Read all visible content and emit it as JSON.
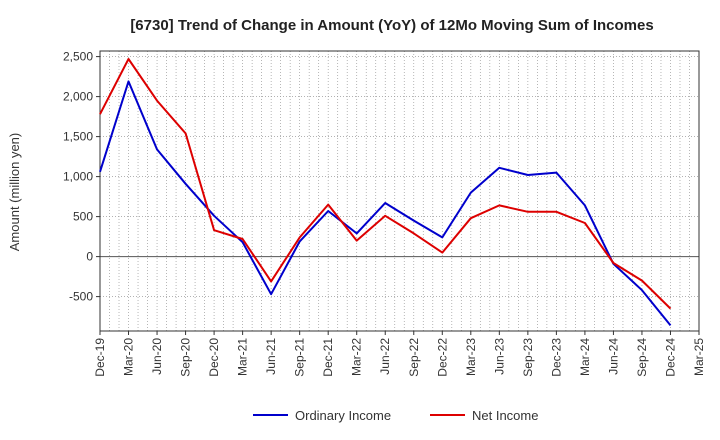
{
  "chart_data": {
    "type": "line",
    "title": "[6730]  Trend of Change in Amount (YoY) of 12Mo Moving Sum of Incomes",
    "xlabel": "",
    "ylabel": "Amount (million yen)",
    "ylim": [
      -930,
      2570
    ],
    "yticks": [
      2500,
      2000,
      1500,
      1000,
      500,
      0,
      -500
    ],
    "ytick_labels": [
      "2,500",
      "2,000",
      "1,500",
      "1,000",
      "500",
      "0",
      "-500"
    ],
    "categories": [
      "Dec-19",
      "Mar-20",
      "Jun-20",
      "Sep-20",
      "Dec-20",
      "Mar-21",
      "Jun-21",
      "Sep-21",
      "Dec-21",
      "Mar-22",
      "Jun-22",
      "Sep-22",
      "Dec-22",
      "Mar-23",
      "Jun-23",
      "Sep-23",
      "Dec-23",
      "Mar-24",
      "Jun-24",
      "Sep-24",
      "Dec-24",
      "Mar-25"
    ],
    "series": [
      {
        "name": "Ordinary Income",
        "color": "#0000cc",
        "values": [
          1060,
          2190,
          1340,
          910,
          510,
          180,
          -470,
          190,
          570,
          290,
          670,
          450,
          240,
          800,
          1110,
          1020,
          1050,
          640,
          -90,
          -420,
          -860,
          null
        ]
      },
      {
        "name": "Net Income",
        "color": "#dd0000",
        "values": [
          1780,
          2470,
          1950,
          1540,
          330,
          220,
          -310,
          240,
          650,
          200,
          510,
          290,
          50,
          480,
          640,
          560,
          560,
          420,
          -80,
          -300,
          -650,
          null
        ]
      }
    ],
    "grid": true,
    "legend_position": "bottom-center"
  }
}
